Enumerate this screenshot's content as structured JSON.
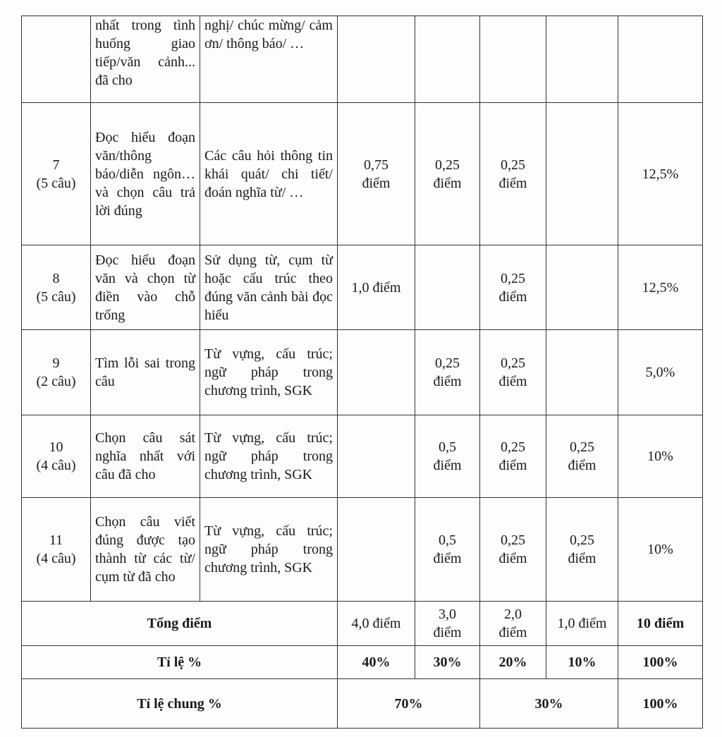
{
  "rows": [
    {
      "num": "",
      "count": "",
      "content": "nhất trong tình huống giao tiếp/văn cảnh... đã cho",
      "desc": "nghị/ chúc mừng/ cảm ơn/ thông báo/ …",
      "s1": "",
      "s2": "",
      "s3": "",
      "s4": "",
      "pct": ""
    },
    {
      "num": "7",
      "count": "(5 câu)",
      "content": "Đọc hiểu đoạn văn/thông báo/diễn ngôn…và chọn câu trả lời đúng",
      "desc": "Các câu hỏi thông tin khái quát/ chi tiết/ đoán nghĩa từ/ …",
      "s1": "0,75 điểm",
      "s2": "0,25 điểm",
      "s3": "0,25 điểm",
      "s4": "",
      "pct": "12,5%"
    },
    {
      "num": "8",
      "count": "(5 câu)",
      "content": "Đọc hiểu đoạn văn và chọn từ điền vào chỗ trống",
      "desc": "Sử dụng từ, cụm từ hoặc cấu trúc theo đúng văn cảnh bài đọc hiểu",
      "s1": "1,0 điểm",
      "s2": "",
      "s3": "0,25 điểm",
      "s4": "",
      "pct": "12,5%"
    },
    {
      "num": "9",
      "count": "(2 câu)",
      "content": "Tìm lỗi sai trong câu",
      "desc": "Từ vựng, cấu trúc; ngữ pháp trong chương trình, SGK",
      "s1": "",
      "s2": "0,25 điểm",
      "s3": "0,25 điểm",
      "s4": "",
      "pct": "5,0%"
    },
    {
      "num": "10",
      "count": "(4 câu)",
      "content": "Chọn câu sát nghĩa nhất với câu đã cho",
      "desc": "Từ vựng, cấu trúc; ngữ pháp trong chương trình, SGK",
      "s1": "",
      "s2": "0,5 điểm",
      "s3": "0,25 điểm",
      "s4": "0,25 điểm",
      "pct": "10%"
    },
    {
      "num": "11",
      "count": "(4 câu)",
      "content": "Chọn câu viết đúng được tạo thành từ các từ/ cụm từ đã cho",
      "desc": "Từ vựng, cấu trúc; ngữ pháp trong chương trình, SGK",
      "s1": "",
      "s2": "0,5 điểm",
      "s3": "0,25 điểm",
      "s4": "0,25 điểm",
      "pct": "10%"
    }
  ],
  "total": {
    "label": "Tổng điểm",
    "s1": "4,0 điểm",
    "s2": "3,0 điểm",
    "s3": "2,0 điểm",
    "s4": "1,0 điểm",
    "all": "10 điểm"
  },
  "ratio": {
    "label": "Tỉ lệ %",
    "s1": "40%",
    "s2": "30%",
    "s3": "20%",
    "s4": "10%",
    "all": "100%"
  },
  "ratio_common": {
    "label": "Tỉ lệ chung %",
    "a": "70%",
    "b": "30%",
    "all": "100%"
  }
}
